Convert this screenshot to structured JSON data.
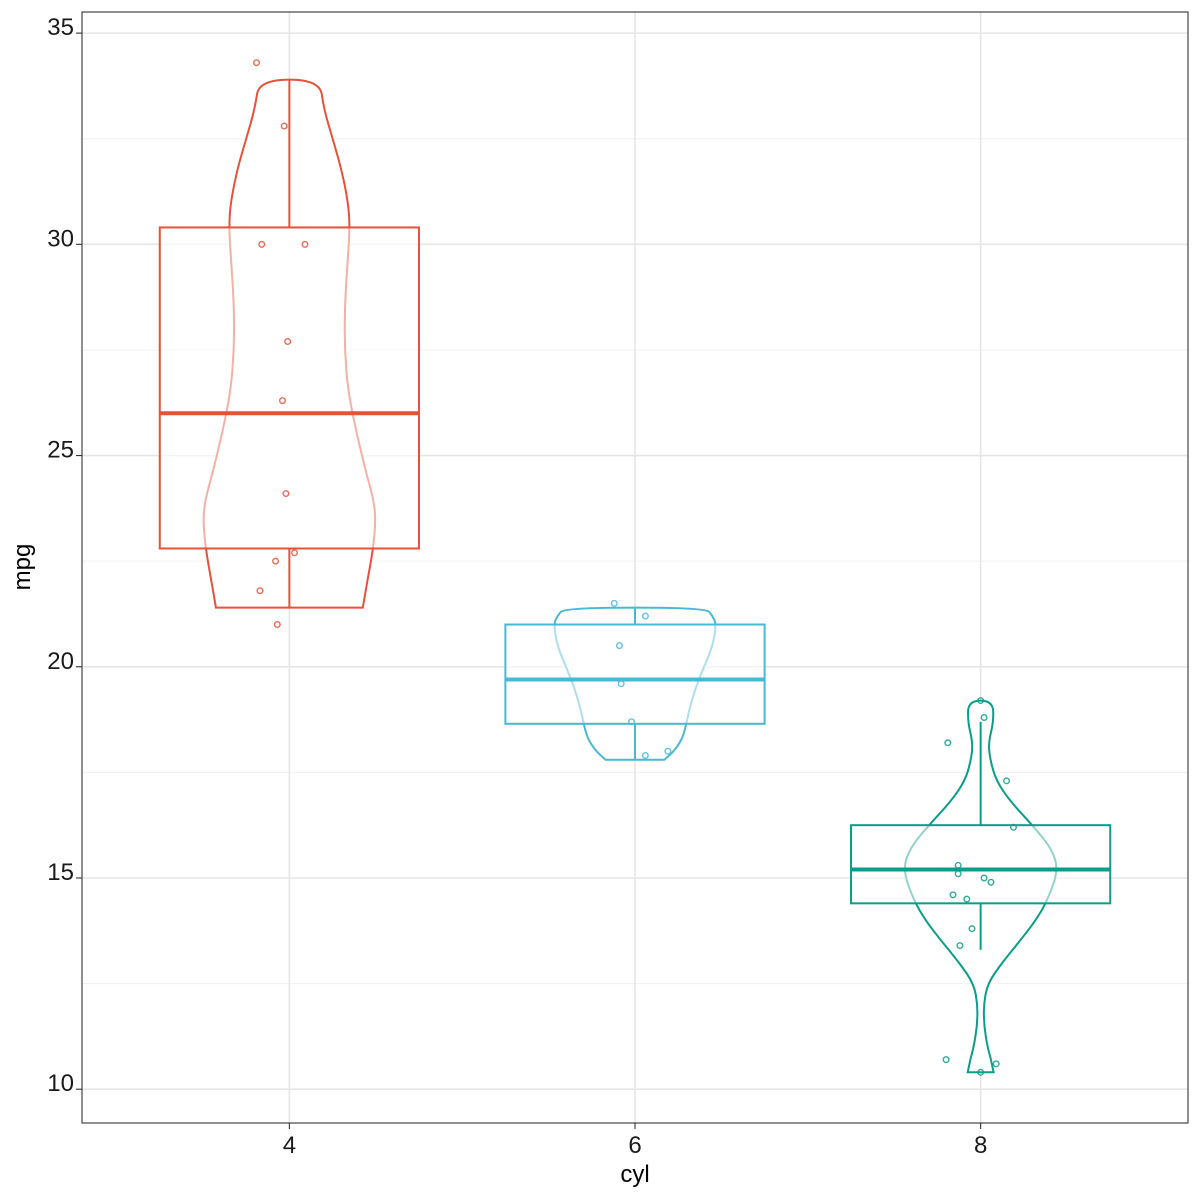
{
  "chart_data": {
    "type": "violin+boxplot+jitter",
    "xlabel": "cyl",
    "ylabel": "mpg",
    "xlim": [
      2.8,
      9.2
    ],
    "ylim": [
      9.2,
      35.5
    ],
    "x_ticks": [
      4,
      6,
      8
    ],
    "y_ticks": [
      10,
      15,
      20,
      25,
      30,
      35
    ],
    "grid": true,
    "legend": "none",
    "groups": [
      {
        "x": 4,
        "color": "#e4523b",
        "box": {
          "min": 21.4,
          "q1": 22.8,
          "median": 26.0,
          "q3": 30.4,
          "max": 33.9
        },
        "violin_profile": [
          [
            21.4,
            0.85
          ],
          [
            22.0,
            0.9
          ],
          [
            22.8,
            0.97
          ],
          [
            23.5,
            1.0
          ],
          [
            24.0,
            0.97
          ],
          [
            24.5,
            0.9
          ],
          [
            25.5,
            0.78
          ],
          [
            26.5,
            0.68
          ],
          [
            27.5,
            0.64
          ],
          [
            28.5,
            0.64
          ],
          [
            29.5,
            0.67
          ],
          [
            30.4,
            0.7
          ],
          [
            31.0,
            0.68
          ],
          [
            31.8,
            0.6
          ],
          [
            32.5,
            0.5
          ],
          [
            33.2,
            0.4
          ],
          [
            33.9,
            0.35
          ]
        ],
        "points": [
          {
            "dx": -0.19,
            "y": 34.3
          },
          {
            "dx": -0.03,
            "y": 32.8
          },
          {
            "dx": -0.16,
            "y": 30.0
          },
          {
            "dx": 0.09,
            "y": 30.0
          },
          {
            "dx": -0.01,
            "y": 27.7
          },
          {
            "dx": -0.04,
            "y": 26.3
          },
          {
            "dx": -0.02,
            "y": 24.1
          },
          {
            "dx": 0.03,
            "y": 22.7
          },
          {
            "dx": -0.08,
            "y": 22.5
          },
          {
            "dx": -0.17,
            "y": 21.8
          },
          {
            "dx": -0.07,
            "y": 21.0
          }
        ]
      },
      {
        "x": 6,
        "color": "#4ab7d4",
        "box": {
          "min": 17.8,
          "q1": 18.65,
          "median": 19.7,
          "q3": 21.0,
          "max": 21.4
        },
        "violin_profile": [
          [
            17.8,
            0.34
          ],
          [
            18.0,
            0.45
          ],
          [
            18.3,
            0.55
          ],
          [
            18.7,
            0.6
          ],
          [
            19.0,
            0.63
          ],
          [
            19.5,
            0.7
          ],
          [
            20.0,
            0.8
          ],
          [
            20.5,
            0.9
          ],
          [
            21.0,
            0.94
          ],
          [
            21.2,
            0.9
          ],
          [
            21.4,
            0.82
          ]
        ],
        "points": [
          {
            "dx": -0.12,
            "y": 21.5
          },
          {
            "dx": 0.06,
            "y": 21.2
          },
          {
            "dx": -0.09,
            "y": 20.5
          },
          {
            "dx": -0.08,
            "y": 19.6
          },
          {
            "dx": -0.02,
            "y": 18.7
          },
          {
            "dx": 0.06,
            "y": 17.9
          },
          {
            "dx": 0.19,
            "y": 18.0
          }
        ]
      },
      {
        "x": 8,
        "color": "#0a9e88",
        "box": {
          "min": 13.3,
          "q1": 14.4,
          "median": 15.2,
          "q3": 16.25,
          "max": 18.7
        },
        "violin_profile": [
          [
            10.4,
            0.15
          ],
          [
            10.7,
            0.12
          ],
          [
            11.0,
            0.08
          ],
          [
            11.5,
            0.04
          ],
          [
            12.0,
            0.035
          ],
          [
            12.5,
            0.08
          ],
          [
            13.0,
            0.25
          ],
          [
            13.5,
            0.45
          ],
          [
            14.0,
            0.64
          ],
          [
            14.5,
            0.78
          ],
          [
            15.2,
            0.9
          ],
          [
            15.7,
            0.82
          ],
          [
            16.2,
            0.62
          ],
          [
            16.8,
            0.35
          ],
          [
            17.3,
            0.18
          ],
          [
            17.8,
            0.11
          ],
          [
            18.2,
            0.09
          ],
          [
            18.7,
            0.15
          ],
          [
            19.2,
            0.14
          ]
        ],
        "points": [
          {
            "dx": 0.0,
            "y": 19.2
          },
          {
            "dx": 0.02,
            "y": 18.8
          },
          {
            "dx": -0.19,
            "y": 18.2
          },
          {
            "dx": 0.15,
            "y": 17.3
          },
          {
            "dx": 0.19,
            "y": 16.2
          },
          {
            "dx": -0.13,
            "y": 15.3
          },
          {
            "dx": -0.13,
            "y": 15.1
          },
          {
            "dx": 0.02,
            "y": 15.0
          },
          {
            "dx": 0.06,
            "y": 14.9
          },
          {
            "dx": -0.16,
            "y": 14.6
          },
          {
            "dx": -0.08,
            "y": 14.5
          },
          {
            "dx": -0.05,
            "y": 13.8
          },
          {
            "dx": -0.12,
            "y": 13.4
          },
          {
            "dx": -0.2,
            "y": 10.7
          },
          {
            "dx": 0.0,
            "y": 10.4
          },
          {
            "dx": 0.09,
            "y": 10.6
          }
        ]
      }
    ]
  }
}
